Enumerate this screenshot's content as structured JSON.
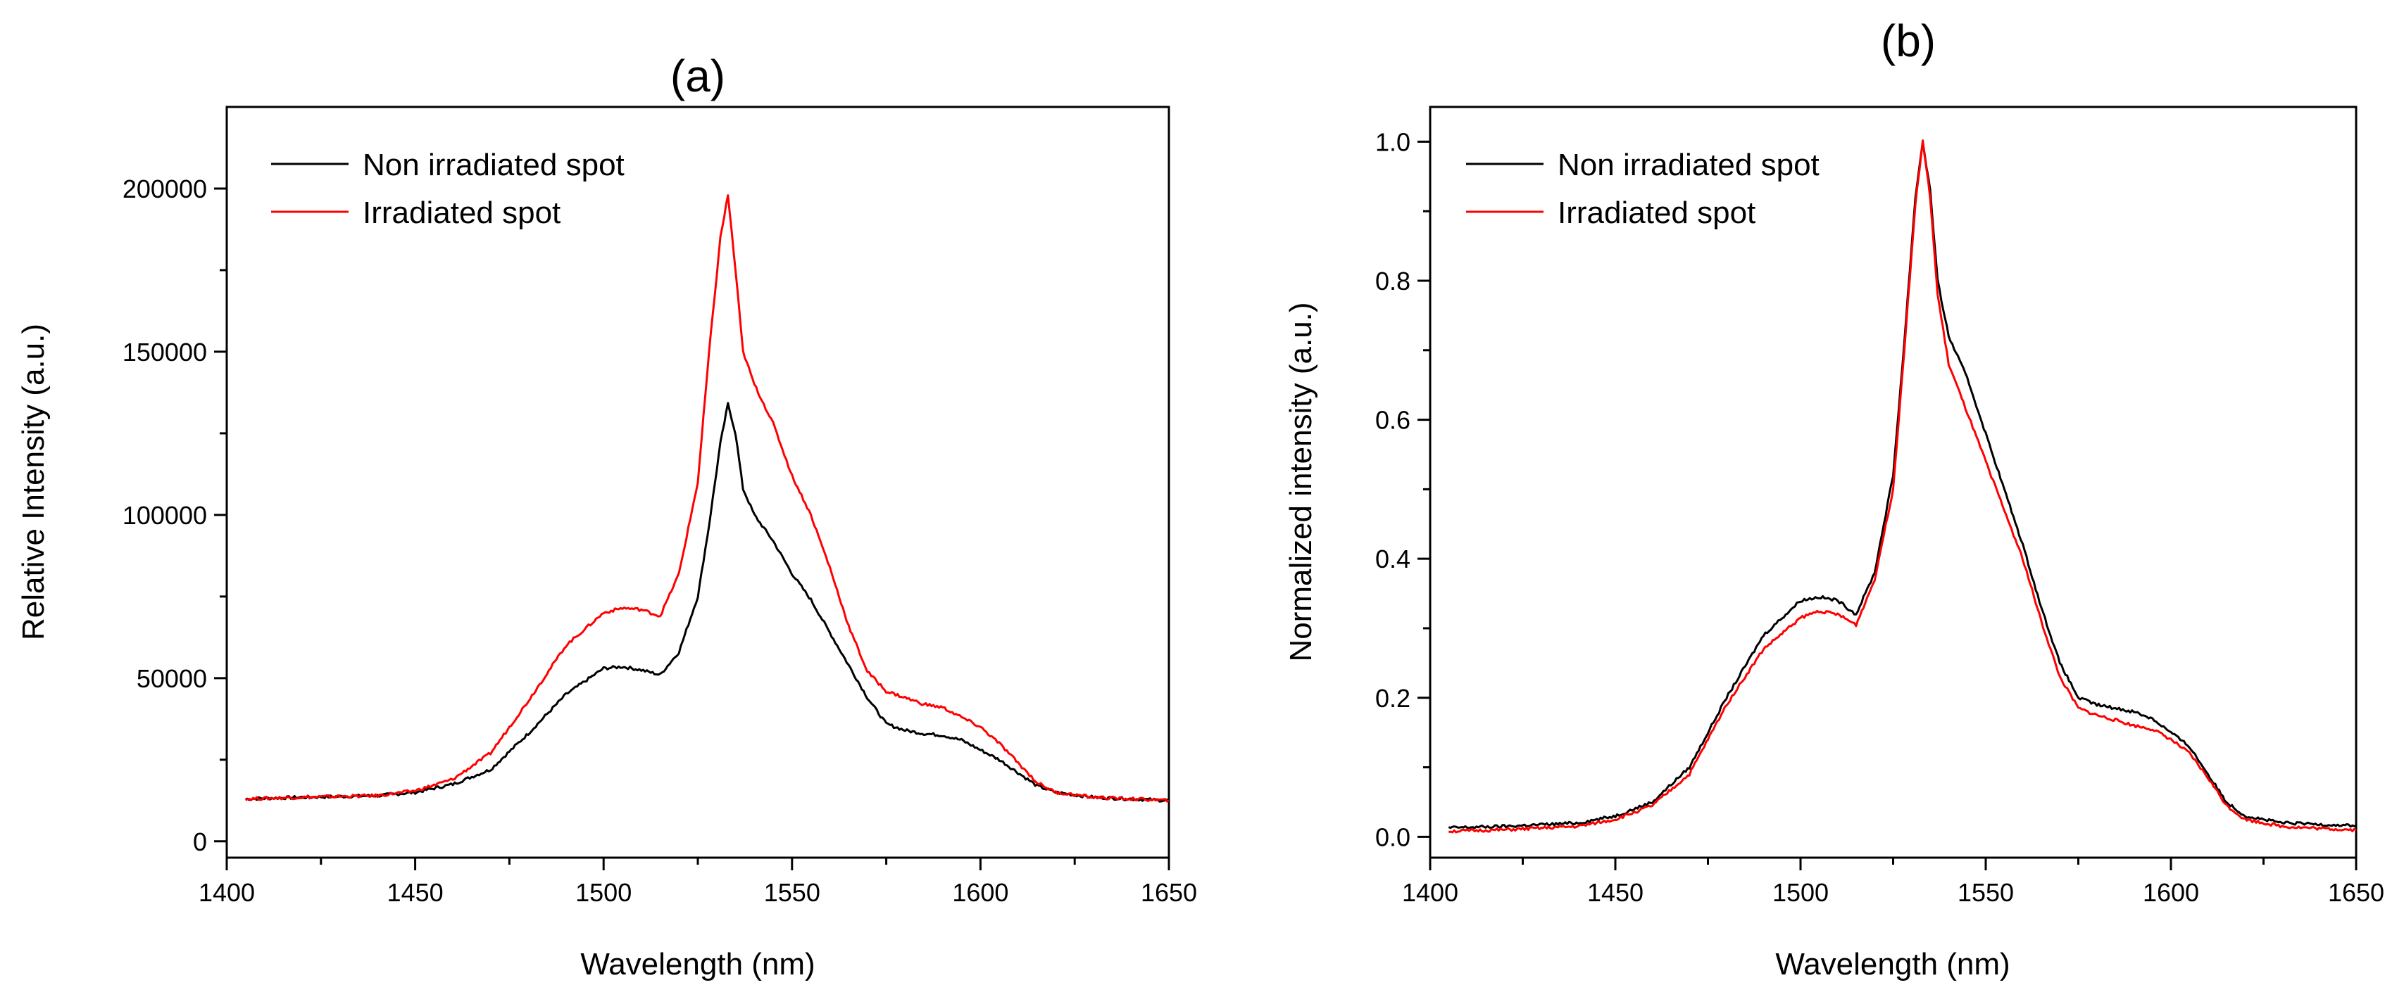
{
  "chart_data": [
    {
      "type": "line",
      "panel": "(a)",
      "title": "(a)",
      "xlabel": "Wavelength (nm)",
      "ylabel": "Relative Intensity (a.u.)",
      "xlim": [
        1400,
        1650
      ],
      "ylim": [
        -5000,
        225000
      ],
      "xticks": [
        1400,
        1450,
        1500,
        1550,
        1600,
        1650
      ],
      "xtick_labels": [
        "1400",
        "1450",
        "1500",
        "1550",
        "1600",
        "1650"
      ],
      "yticks": [
        0,
        50000,
        100000,
        150000,
        200000
      ],
      "ytick_labels": [
        "0",
        "50000",
        "100000",
        "150000",
        "200000"
      ],
      "grid": false,
      "legend_position": "top-left",
      "series": [
        {
          "name": "Non irradiated spot",
          "color": "#000000",
          "x": [
            1405,
            1420,
            1440,
            1450,
            1460,
            1470,
            1480,
            1490,
            1500,
            1505,
            1510,
            1515,
            1520,
            1525,
            1528,
            1531,
            1533,
            1535,
            1537,
            1540,
            1545,
            1550,
            1555,
            1560,
            1565,
            1570,
            1575,
            1580,
            1585,
            1590,
            1595,
            1600,
            1605,
            1610,
            1615,
            1620,
            1630,
            1640,
            1650
          ],
          "y": [
            13000,
            13500,
            14000,
            15000,
            17500,
            22000,
            33000,
            45000,
            53000,
            53500,
            52500,
            51000,
            58000,
            75000,
            97000,
            122000,
            134000,
            125000,
            108000,
            100000,
            92000,
            82000,
            74000,
            64000,
            54000,
            44000,
            36000,
            34000,
            33000,
            32500,
            31000,
            28000,
            25000,
            21000,
            17000,
            15000,
            13500,
            13000,
            12500
          ]
        },
        {
          "name": "Irradiated spot",
          "color": "#ff0000",
          "x": [
            1405,
            1420,
            1440,
            1450,
            1460,
            1470,
            1480,
            1490,
            1500,
            1505,
            1510,
            1515,
            1520,
            1525,
            1528,
            1531,
            1533,
            1535,
            1537,
            1540,
            1545,
            1550,
            1555,
            1560,
            1565,
            1570,
            1575,
            1580,
            1585,
            1590,
            1595,
            1600,
            1605,
            1610,
            1615,
            1620,
            1630,
            1640,
            1650
          ],
          "y": [
            13000,
            13500,
            14000,
            15500,
            19000,
            27000,
            43000,
            60000,
            70000,
            71500,
            71000,
            69000,
            82000,
            110000,
            150000,
            185000,
            198000,
            175000,
            150000,
            140000,
            128000,
            112000,
            100000,
            84000,
            66000,
            52000,
            46000,
            44000,
            42000,
            41000,
            38000,
            35000,
            30000,
            24000,
            18000,
            15000,
            13500,
            13000,
            12500
          ]
        }
      ]
    },
    {
      "type": "line",
      "panel": "(b)",
      "title": "(b)",
      "xlabel": "Wavelength (nm)",
      "ylabel": "Normalized intensity (a.u.)",
      "xlim": [
        1400,
        1650
      ],
      "ylim": [
        -0.03,
        1.05
      ],
      "xticks": [
        1400,
        1450,
        1500,
        1550,
        1600,
        1650
      ],
      "xtick_labels": [
        "1400",
        "1450",
        "1500",
        "1550",
        "1600",
        "1650"
      ],
      "yticks": [
        0.0,
        0.2,
        0.4,
        0.6,
        0.8,
        1.0
      ],
      "ytick_labels": [
        "0.0",
        "0.2",
        "0.4",
        "0.6",
        "0.8",
        "1.0"
      ],
      "grid": false,
      "legend_position": "top-left",
      "series": [
        {
          "name": "Non irradiated spot",
          "color": "#000000",
          "x": [
            1405,
            1420,
            1440,
            1450,
            1460,
            1470,
            1480,
            1490,
            1500,
            1505,
            1510,
            1515,
            1520,
            1525,
            1528,
            1531,
            1533,
            1535,
            1537,
            1540,
            1545,
            1550,
            1555,
            1560,
            1565,
            1570,
            1575,
            1580,
            1585,
            1590,
            1595,
            1600,
            1605,
            1610,
            1615,
            1620,
            1630,
            1640,
            1650
          ],
          "y": [
            0.013,
            0.015,
            0.02,
            0.03,
            0.05,
            0.1,
            0.2,
            0.29,
            0.34,
            0.345,
            0.34,
            0.32,
            0.38,
            0.52,
            0.71,
            0.92,
            1.0,
            0.93,
            0.8,
            0.72,
            0.66,
            0.58,
            0.5,
            0.42,
            0.33,
            0.25,
            0.2,
            0.19,
            0.185,
            0.18,
            0.17,
            0.15,
            0.13,
            0.09,
            0.05,
            0.03,
            0.02,
            0.018,
            0.016
          ]
        },
        {
          "name": "Irradiated spot",
          "color": "#ff0000",
          "x": [
            1405,
            1420,
            1440,
            1450,
            1460,
            1470,
            1480,
            1490,
            1500,
            1505,
            1510,
            1515,
            1520,
            1525,
            1528,
            1531,
            1533,
            1535,
            1537,
            1540,
            1545,
            1550,
            1555,
            1560,
            1565,
            1570,
            1575,
            1580,
            1585,
            1590,
            1595,
            1600,
            1605,
            1610,
            1615,
            1620,
            1630,
            1640,
            1650
          ],
          "y": [
            0.008,
            0.01,
            0.015,
            0.025,
            0.045,
            0.09,
            0.19,
            0.27,
            0.315,
            0.325,
            0.32,
            0.305,
            0.37,
            0.5,
            0.7,
            0.91,
            1.0,
            0.92,
            0.78,
            0.68,
            0.61,
            0.54,
            0.47,
            0.4,
            0.31,
            0.23,
            0.185,
            0.175,
            0.168,
            0.16,
            0.155,
            0.14,
            0.12,
            0.085,
            0.045,
            0.025,
            0.015,
            0.012,
            0.01
          ]
        }
      ]
    }
  ]
}
